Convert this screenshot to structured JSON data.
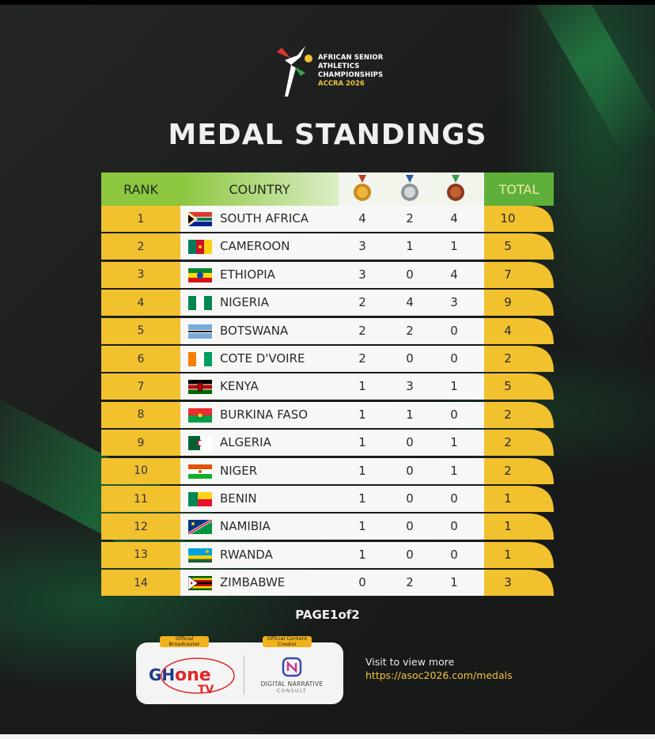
{
  "logo": {
    "line1": "AFRICAN SENIOR",
    "line2": "ATHLETICS",
    "line3": "CHAMPIONSHIPS",
    "line4": "ACCRA 2026"
  },
  "title": "MEDAL STANDINGS",
  "table": {
    "headers": {
      "rank": "RANK",
      "country": "COUNTRY",
      "gold_icon": "gold-medal-icon",
      "silver_icon": "silver-medal-icon",
      "bronze_icon": "bronze-medal-icon",
      "total": "TOTAL"
    },
    "rows": [
      {
        "rank": "1",
        "country": "SOUTH AFRICA",
        "gold": "4",
        "silver": "2",
        "bronze": "4",
        "total": "10",
        "flag": "south-africa-flag-icon"
      },
      {
        "rank": "2",
        "country": "CAMEROON",
        "gold": "3",
        "silver": "1",
        "bronze": "1",
        "total": "5",
        "flag": "cameroon-flag-icon"
      },
      {
        "rank": "3",
        "country": "ETHIOPIA",
        "gold": "3",
        "silver": "0",
        "bronze": "4",
        "total": "7",
        "flag": "ethiopia-flag-icon"
      },
      {
        "rank": "4",
        "country": "NIGERIA",
        "gold": "2",
        "silver": "4",
        "bronze": "3",
        "total": "9",
        "flag": "nigeria-flag-icon"
      },
      {
        "rank": "5",
        "country": "BOTSWANA",
        "gold": "2",
        "silver": "2",
        "bronze": "0",
        "total": "4",
        "flag": "botswana-flag-icon"
      },
      {
        "rank": "6",
        "country": "COTE D'VOIRE",
        "gold": "2",
        "silver": "0",
        "bronze": "0",
        "total": "2",
        "flag": "cote-divoire-flag-icon"
      },
      {
        "rank": "7",
        "country": "KENYA",
        "gold": "1",
        "silver": "3",
        "bronze": "1",
        "total": "5",
        "flag": "kenya-flag-icon"
      },
      {
        "rank": "8",
        "country": "BURKINA FASO",
        "gold": "1",
        "silver": "1",
        "bronze": "0",
        "total": "2",
        "flag": "burkina-faso-flag-icon"
      },
      {
        "rank": "9",
        "country": "ALGERIA",
        "gold": "1",
        "silver": "0",
        "bronze": "1",
        "total": "2",
        "flag": "algeria-flag-icon"
      },
      {
        "rank": "10",
        "country": "NIGER",
        "gold": "1",
        "silver": "0",
        "bronze": "1",
        "total": "2",
        "flag": "niger-flag-icon"
      },
      {
        "rank": "11",
        "country": "BENIN",
        "gold": "1",
        "silver": "0",
        "bronze": "0",
        "total": "1",
        "flag": "benin-flag-icon"
      },
      {
        "rank": "12",
        "country": "NAMIBIA",
        "gold": "1",
        "silver": "0",
        "bronze": "0",
        "total": "1",
        "flag": "namibia-flag-icon"
      },
      {
        "rank": "13",
        "country": "RWANDA",
        "gold": "1",
        "silver": "0",
        "bronze": "0",
        "total": "1",
        "flag": "rwanda-flag-icon"
      },
      {
        "rank": "14",
        "country": "ZIMBABWE",
        "gold": "0",
        "silver": "2",
        "bronze": "1",
        "total": "3",
        "flag": "zimbabwe-flag-icon"
      }
    ]
  },
  "pagination": "PAGE1of2",
  "sponsors": {
    "broadcaster_tag": "Official Broadcaster",
    "broadcaster_name": "GHone TV",
    "content_tag": "Official Content Creator",
    "content_name": "DIGITAL NARRATIVE",
    "content_sub": "CONSULT"
  },
  "visit": {
    "text": "Visit to view more",
    "url": "https://asoc2026.com/medals"
  },
  "colors": {
    "rank_yellow": "#f2c12e",
    "header_green": "#8dc63f",
    "total_green": "#5fb03a",
    "background": "#1a1c1b"
  }
}
